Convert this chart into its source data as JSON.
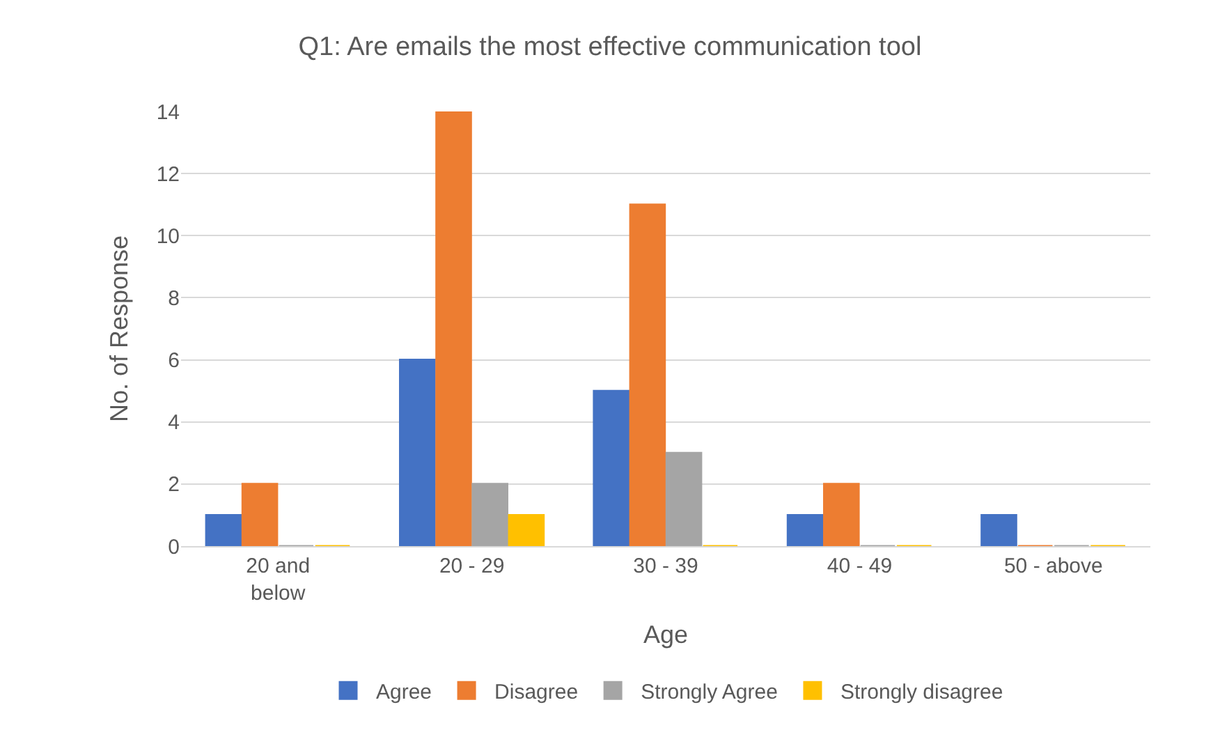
{
  "chart_data": {
    "type": "bar",
    "title": "Q1: Are emails the most effective communication tool",
    "xlabel": "Age",
    "ylabel": "No. of Response",
    "categories": [
      "20 and below",
      "20 - 29",
      "30 - 39",
      "40 - 49",
      "50 - above"
    ],
    "series": [
      {
        "name": "Agree",
        "color": "#4472c4",
        "values": [
          1,
          6,
          5,
          1,
          1
        ]
      },
      {
        "name": "Disagree",
        "color": "#ed7d31",
        "values": [
          2,
          14,
          11,
          2,
          0
        ]
      },
      {
        "name": "Strongly Agree",
        "color": "#a5a5a5",
        "values": [
          0,
          2,
          3,
          0,
          0
        ]
      },
      {
        "name": "Strongly disagree",
        "color": "#ffc000",
        "values": [
          0,
          1,
          0,
          0,
          0
        ]
      }
    ],
    "ylim": [
      0,
      14
    ],
    "yticks": [
      0,
      2,
      4,
      6,
      8,
      10,
      12,
      14
    ],
    "grid": "y",
    "legend": "bottom"
  }
}
